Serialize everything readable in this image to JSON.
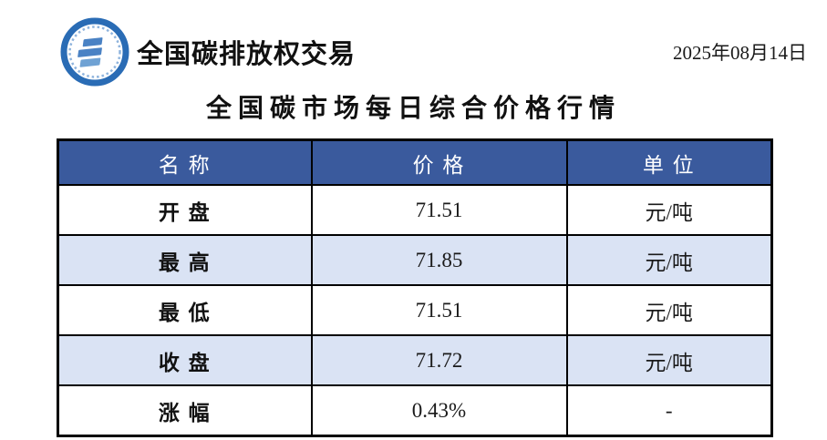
{
  "header": {
    "brand": "全国碳排放权交易",
    "date": "2025年08月14日",
    "logo_name": "carbon-exchange-logo"
  },
  "title": "全国碳市场每日综合价格行情",
  "table": {
    "columns": [
      "名 称",
      "价 格",
      "单 位"
    ],
    "rows": [
      {
        "name": "开 盘",
        "price": "71.51",
        "unit": "元/吨"
      },
      {
        "name": "最 高",
        "price": "71.85",
        "unit": "元/吨"
      },
      {
        "name": "最 低",
        "price": "71.51",
        "unit": "元/吨"
      },
      {
        "name": "收 盘",
        "price": "71.72",
        "unit": "元/吨"
      },
      {
        "name": "涨 幅",
        "price": "0.43%",
        "unit": "-"
      }
    ]
  },
  "colors": {
    "header_bg": "#3A5A9D",
    "stripe_bg": "#DAE3F4",
    "border": "#000000",
    "logo_ring_blue": "#2A6CB5",
    "logo_bar_blue": "#4A82C4"
  }
}
